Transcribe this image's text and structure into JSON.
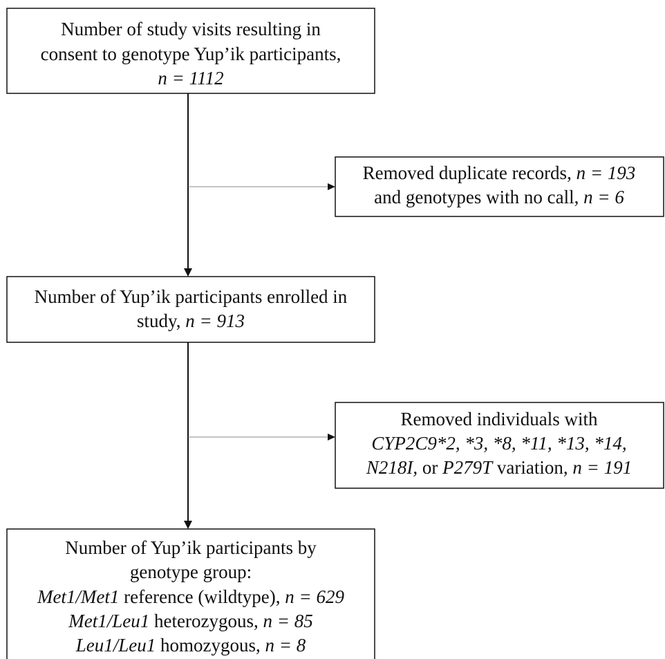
{
  "nodes": [
    {
      "lines": [
        [
          "Number of study visits resulting in"
        ],
        [
          "consent to genotype Yup’ik participants,"
        ],
        [
          "n = 1112"
        ]
      ]
    },
    {
      "lines": [
        [
          "Removed duplicate records, ",
          "n = 193"
        ],
        [
          "and genotypes with no call, ",
          "n = 6"
        ]
      ]
    },
    {
      "lines": [
        [
          "Number of Yup’ik participants enrolled in"
        ],
        [
          "study, ",
          "n = 913"
        ]
      ]
    },
    {
      "lines": [
        [
          "Removed individuals with"
        ],
        [
          "CYP2C9*2, *3, *8, *11, *13, *14,"
        ],
        [
          "N218I,",
          " or ",
          "P279T",
          " variation, ",
          "n = 191"
        ]
      ]
    },
    {
      "lines": [
        [
          "Number of Yup’ik participants by"
        ],
        [
          "genotype group:"
        ],
        [
          "Met1/Met1",
          " reference (wildtype), ",
          "n = 629"
        ],
        [
          "Met1/Leu1",
          " heterozygous, ",
          "n = 85"
        ],
        [
          "Leu1/Leu1",
          " homozygous, ",
          "n = 8"
        ]
      ]
    }
  ]
}
